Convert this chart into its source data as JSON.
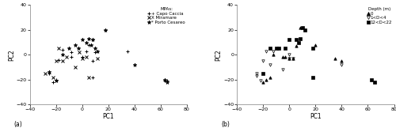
{
  "title_a": "(a)",
  "title_b": "(b)",
  "xlabel": "PC1",
  "ylabel": "PC2",
  "xlim": [
    -40,
    80
  ],
  "ylim": [
    -40,
    40
  ],
  "xticks": [
    -40,
    -20,
    0,
    20,
    40,
    60,
    80
  ],
  "yticks": [
    -40,
    -20,
    0,
    20,
    40
  ],
  "legend_a_title": "MPAs:",
  "legend_b_title": "Depth (m)",
  "capo_caccia": [
    [
      -25,
      -15
    ],
    [
      -20,
      -20
    ],
    [
      -22,
      -22
    ],
    [
      -15,
      4
    ],
    [
      -18,
      -4
    ],
    [
      -8,
      -2
    ],
    [
      -8,
      2
    ],
    [
      0,
      -2
    ],
    [
      3,
      3
    ],
    [
      5,
      8
    ],
    [
      8,
      12
    ],
    [
      10,
      2
    ],
    [
      8,
      -5
    ],
    [
      8,
      -18
    ],
    [
      18,
      20
    ],
    [
      35,
      3
    ],
    [
      63,
      -21
    ],
    [
      65,
      -21
    ]
  ],
  "miramare": [
    [
      -28,
      -15
    ],
    [
      -22,
      -18
    ],
    [
      -20,
      -5
    ],
    [
      -18,
      5
    ],
    [
      -15,
      -5
    ],
    [
      -12,
      -2
    ],
    [
      -5,
      -10
    ],
    [
      -2,
      2
    ],
    [
      0,
      -3
    ],
    [
      5,
      -18
    ],
    [
      12,
      -3
    ],
    [
      3,
      -2
    ]
  ],
  "porto_cesareo": [
    [
      -25,
      -14
    ],
    [
      -20,
      -21
    ],
    [
      -15,
      0
    ],
    [
      -10,
      5
    ],
    [
      -5,
      8
    ],
    [
      -3,
      5
    ],
    [
      0,
      12
    ],
    [
      3,
      10
    ],
    [
      5,
      13
    ],
    [
      8,
      12
    ],
    [
      7,
      8
    ],
    [
      10,
      5
    ],
    [
      12,
      3
    ],
    [
      18,
      20
    ],
    [
      40,
      -8
    ],
    [
      63,
      -20
    ],
    [
      65,
      -22
    ]
  ],
  "depth_0": [
    [
      -20,
      -22
    ],
    [
      -18,
      -20
    ],
    [
      -15,
      -18
    ],
    [
      -12,
      0
    ],
    [
      -5,
      -2
    ],
    [
      -3,
      -2
    ],
    [
      0,
      -3
    ],
    [
      3,
      -3
    ],
    [
      5,
      7
    ],
    [
      8,
      22
    ],
    [
      20,
      8
    ],
    [
      35,
      -3
    ],
    [
      40,
      -5
    ]
  ],
  "depth_1_4": [
    [
      -25,
      -15
    ],
    [
      -25,
      -17
    ],
    [
      -22,
      -21
    ],
    [
      -20,
      -5
    ],
    [
      -18,
      3
    ],
    [
      -15,
      -8
    ],
    [
      -12,
      3
    ],
    [
      -5,
      -12
    ],
    [
      0,
      -3
    ],
    [
      3,
      -3
    ],
    [
      0,
      0
    ],
    [
      40,
      -8
    ]
  ],
  "depth_12_22": [
    [
      -20,
      -15
    ],
    [
      -15,
      5
    ],
    [
      -10,
      5
    ],
    [
      -8,
      5
    ],
    [
      -3,
      5
    ],
    [
      0,
      12
    ],
    [
      5,
      12
    ],
    [
      7,
      10
    ],
    [
      8,
      13
    ],
    [
      10,
      22
    ],
    [
      12,
      20
    ],
    [
      18,
      5
    ],
    [
      18,
      -18
    ],
    [
      63,
      -20
    ],
    [
      65,
      -22
    ]
  ]
}
